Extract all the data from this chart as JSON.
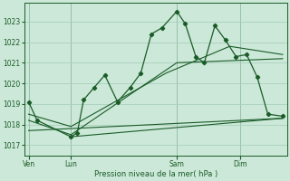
{
  "title": "Pression niveau de la mer( hPa )",
  "bg_color": "#cce8d8",
  "grid_color": "#aacfbe",
  "line_color": "#1a5c28",
  "ylim": [
    1016.5,
    1023.9
  ],
  "yticks": [
    1017,
    1018,
    1019,
    1020,
    1021,
    1022,
    1023
  ],
  "xtick_labels": [
    "Ven",
    "Lun",
    "Sam",
    "Dim"
  ],
  "xtick_positions": [
    0,
    2,
    7,
    10
  ],
  "xlim": [
    -0.2,
    12.2
  ],
  "main_line": {
    "x": [
      0,
      0.4,
      2.0,
      2.3,
      2.6,
      3.1,
      3.6,
      4.2,
      4.8,
      5.3,
      5.8,
      6.3,
      7.0,
      7.4,
      7.9,
      8.3,
      8.8,
      9.3,
      9.8,
      10.3,
      10.8,
      11.3,
      12.0
    ],
    "y": [
      1019.1,
      1018.2,
      1017.4,
      1017.6,
      1019.2,
      1019.8,
      1020.4,
      1019.1,
      1019.8,
      1020.5,
      1022.4,
      1022.7,
      1023.5,
      1022.9,
      1021.3,
      1021.0,
      1022.8,
      1022.1,
      1021.3,
      1021.4,
      1020.3,
      1018.5,
      1018.4
    ]
  },
  "trend_line1": {
    "x": [
      0,
      2.0,
      6.5,
      9.5,
      12.0
    ],
    "y": [
      1018.5,
      1017.9,
      1020.5,
      1021.8,
      1021.4
    ]
  },
  "trend_line2": {
    "x": [
      0,
      2.0,
      7.0,
      12.0
    ],
    "y": [
      1018.2,
      1017.5,
      1021.0,
      1021.2
    ]
  },
  "flat_line1": {
    "x": [
      0,
      12.0
    ],
    "y": [
      1017.7,
      1018.3
    ]
  },
  "flat_line2": {
    "x": [
      2.0,
      12.0
    ],
    "y": [
      1017.4,
      1018.3
    ]
  }
}
